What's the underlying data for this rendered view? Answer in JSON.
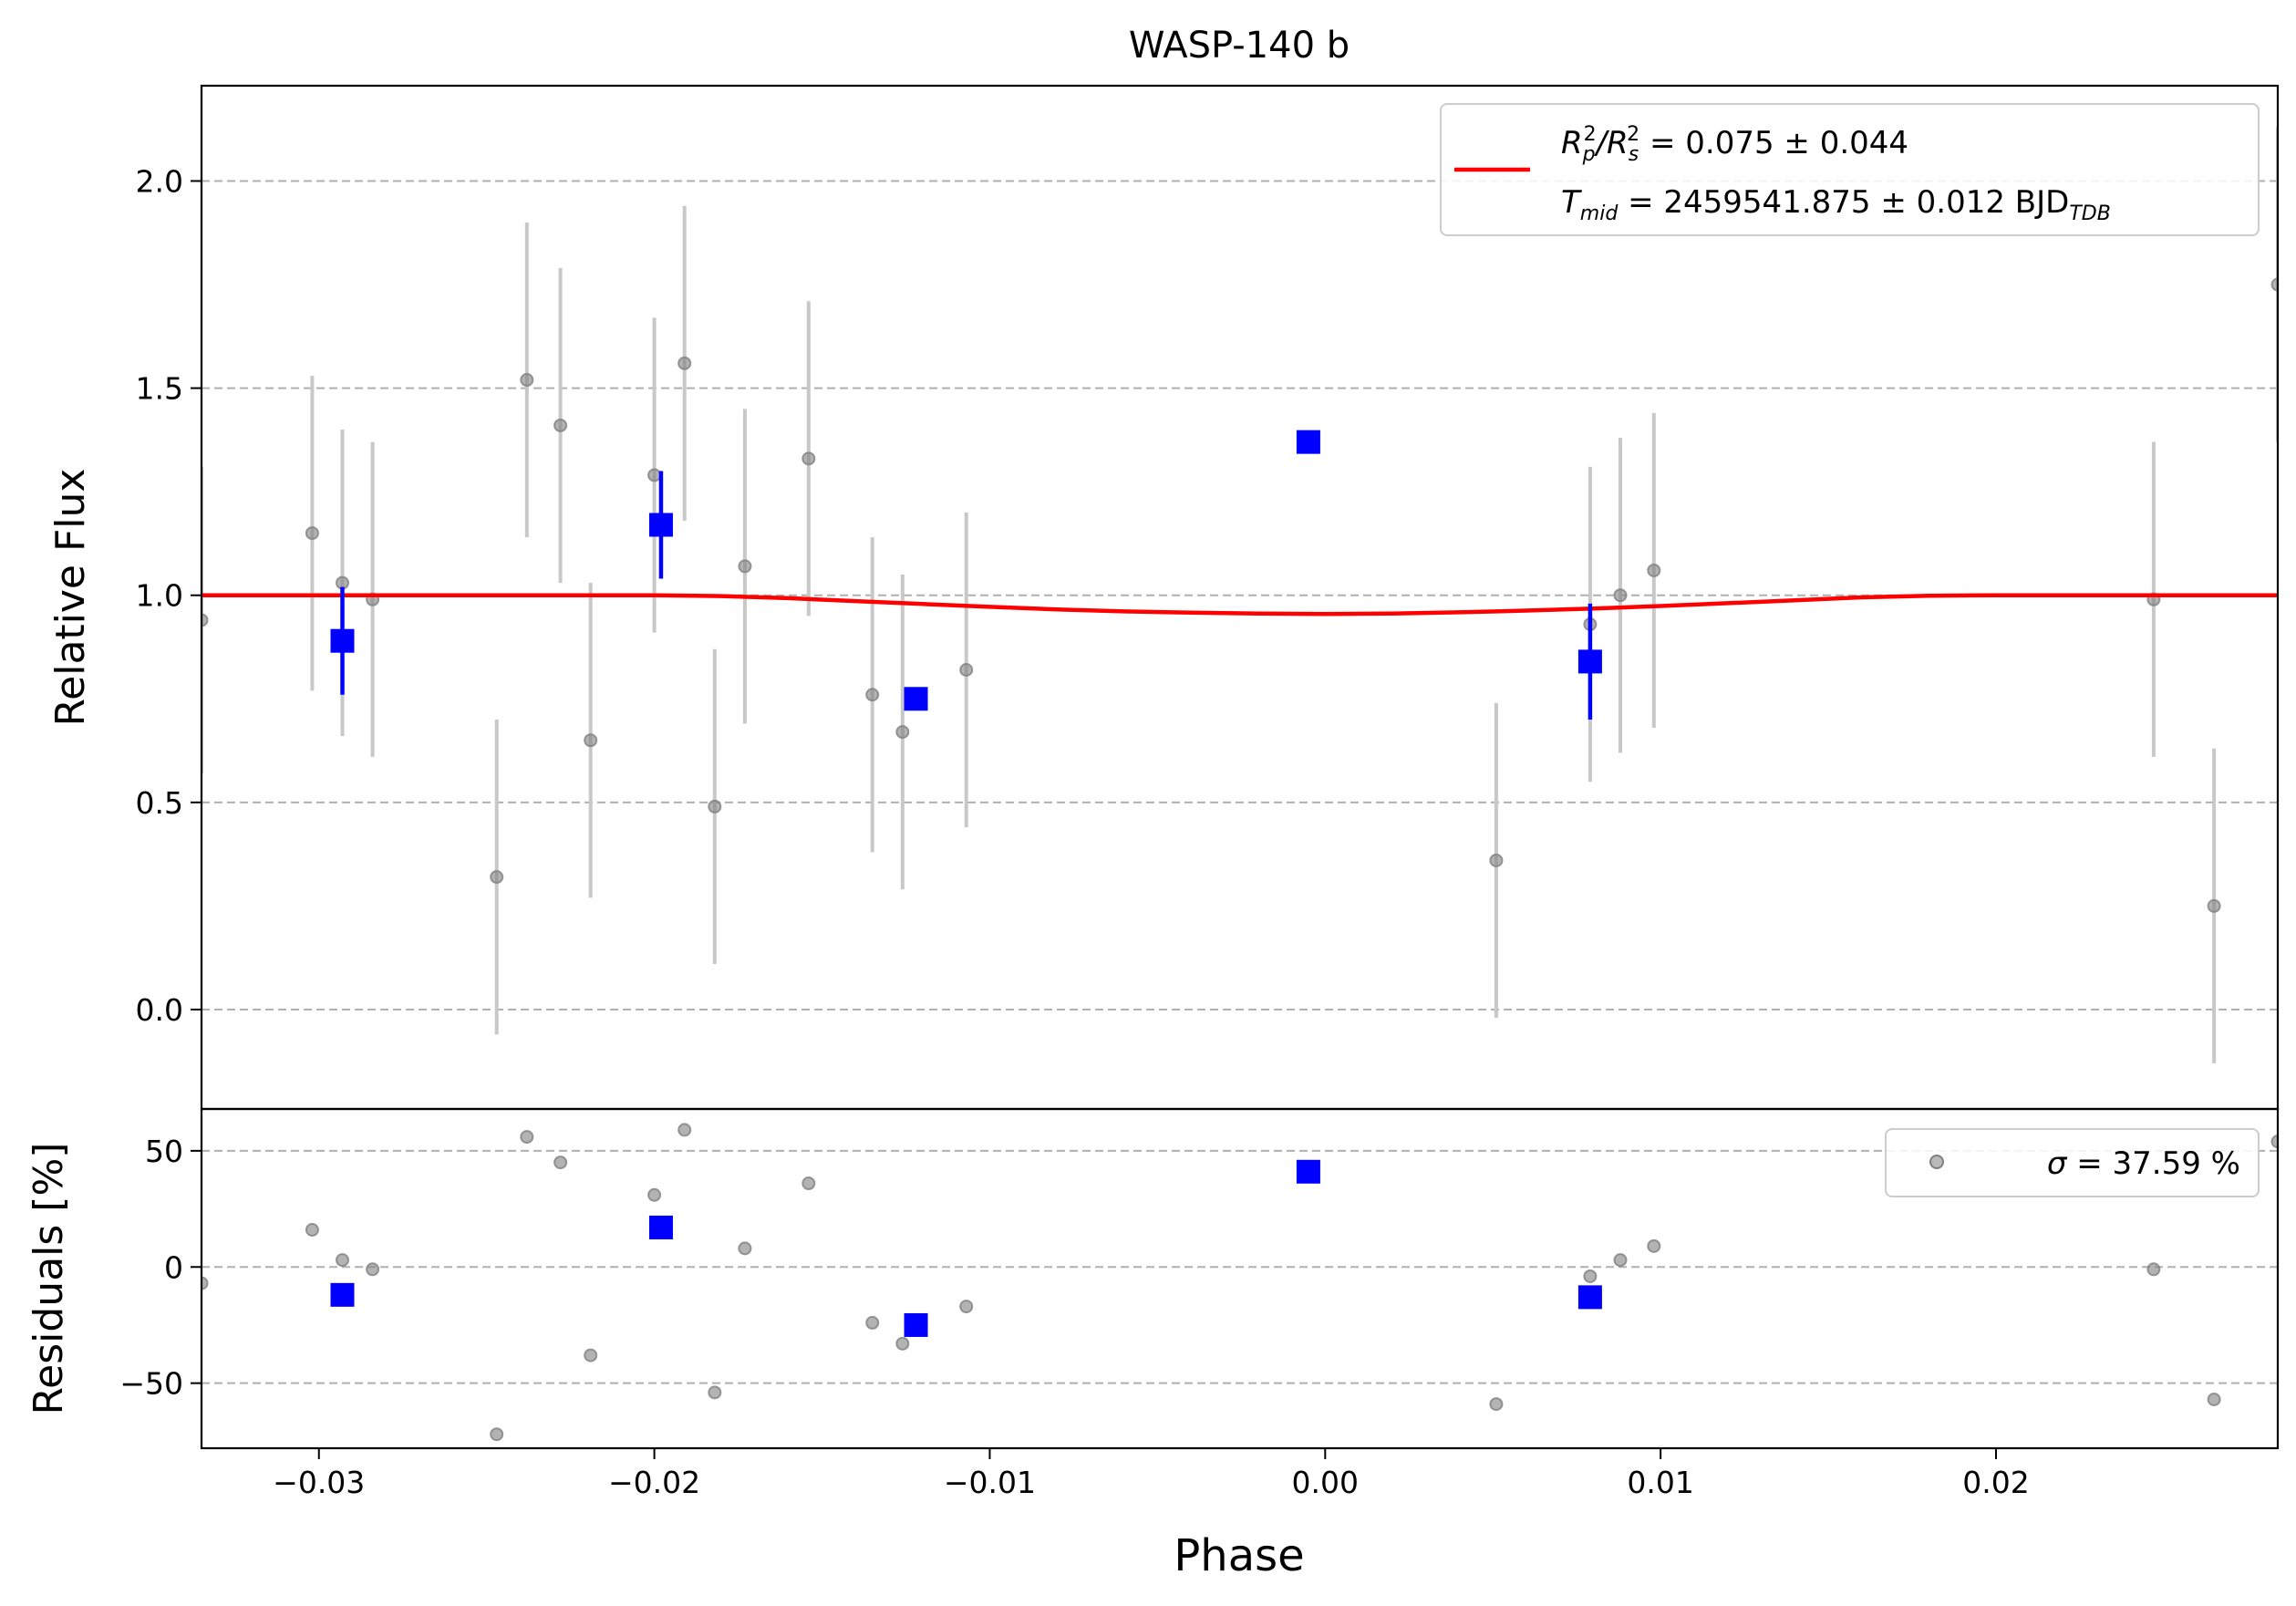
{
  "chart_data": [
    {
      "type": "scatter",
      "title": "WASP-140 b",
      "xlabel": "",
      "ylabel": "Relative Flux",
      "xlim": [
        -0.0335,
        0.0284
      ],
      "ylim": [
        -0.24,
        2.23
      ],
      "xticks": [
        -0.03,
        -0.02,
        -0.01,
        0.0,
        0.01,
        0.02
      ],
      "yticks": [
        0.0,
        0.5,
        1.0,
        1.5,
        2.0
      ],
      "ytick_labels": [
        "0.0",
        "0.5",
        "1.0",
        "1.5",
        "2.0"
      ],
      "grid": "y-dashed",
      "legend": {
        "placement": "top-right",
        "line1": {
          "label": "R",
          "sub1": "p",
          "sup1": "2",
          "sep": "/R",
          "sub2": "s",
          "sup2": "2",
          "value": " = 0.075 ± 0.044"
        },
        "line2": {
          "label": "T",
          "sub": "mid",
          "value": " = 2459541.875 ± 0.012 BJD",
          "unit_sub": "TDB"
        }
      },
      "series": [
        {
          "kind": "raw",
          "color": "#808080",
          "points": [
            {
              "x": -0.0335,
              "y": 0.94,
              "err": 0.37
            },
            {
              "x": -0.0302,
              "y": 1.15,
              "err": 0.38
            },
            {
              "x": -0.0293,
              "y": 1.03,
              "err": 0.37
            },
            {
              "x": -0.0284,
              "y": 0.99,
              "err": 0.38
            },
            {
              "x": -0.0247,
              "y": 0.32,
              "err": 0.38
            },
            {
              "x": -0.0238,
              "y": 1.52,
              "err": 0.38
            },
            {
              "x": -0.0228,
              "y": 1.41,
              "err": 0.38
            },
            {
              "x": -0.0219,
              "y": 0.65,
              "err": 0.38
            },
            {
              "x": -0.02,
              "y": 1.29,
              "err": 0.38
            },
            {
              "x": -0.0191,
              "y": 1.56,
              "err": 0.38
            },
            {
              "x": -0.0182,
              "y": 0.49,
              "err": 0.38
            },
            {
              "x": -0.0173,
              "y": 1.07,
              "err": 0.38
            },
            {
              "x": -0.0154,
              "y": 1.33,
              "err": 0.38
            },
            {
              "x": -0.0135,
              "y": 0.76,
              "err": 0.38
            },
            {
              "x": -0.0126,
              "y": 0.67,
              "err": 0.38
            },
            {
              "x": -0.0107,
              "y": 0.82,
              "err": 0.38
            },
            {
              "x": 0.0051,
              "y": 0.36,
              "err": 0.38
            },
            {
              "x": 0.0079,
              "y": 0.93,
              "err": 0.38
            },
            {
              "x": 0.0088,
              "y": 1.0,
              "err": 0.38
            },
            {
              "x": 0.0098,
              "y": 1.06,
              "err": 0.38
            },
            {
              "x": 0.0247,
              "y": 0.99,
              "err": 0.38
            },
            {
              "x": 0.0265,
              "y": 0.25,
              "err": 0.38
            },
            {
              "x": 0.0284,
              "y": 1.75,
              "err": 0.38
            }
          ]
        },
        {
          "kind": "binned",
          "color": "#0000ff",
          "points": [
            {
              "x": -0.0293,
              "y": 0.89,
              "err": 0.13
            },
            {
              "x": -0.0198,
              "y": 1.17,
              "err": 0.13
            },
            {
              "x": -0.0122,
              "y": 0.75,
              "err": 0.02
            },
            {
              "x": -0.0005,
              "y": 1.37,
              "err": 0.0
            },
            {
              "x": 0.0079,
              "y": 0.84,
              "err": 0.14
            }
          ]
        },
        {
          "kind": "model",
          "color": "#ff0000",
          "x": [
            -0.0335,
            -0.025,
            -0.02,
            -0.018,
            -0.016,
            -0.014,
            -0.012,
            -0.01,
            -0.008,
            -0.006,
            -0.004,
            -0.002,
            0.0,
            0.002,
            0.004,
            0.006,
            0.008,
            0.01,
            0.012,
            0.014,
            0.016,
            0.018,
            0.02,
            0.0284
          ],
          "y": [
            1.0,
            1.0,
            1.0,
            0.998,
            0.993,
            0.986,
            0.979,
            0.972,
            0.966,
            0.961,
            0.958,
            0.956,
            0.955,
            0.956,
            0.959,
            0.963,
            0.968,
            0.974,
            0.981,
            0.988,
            0.995,
            0.999,
            1.0,
            1.0
          ]
        }
      ]
    },
    {
      "type": "scatter",
      "title": "",
      "xlabel": "Phase",
      "ylabel": "Residuals [%]",
      "xlim": [
        -0.0335,
        0.0284
      ],
      "ylim": [
        -78,
        68
      ],
      "xticks": [
        -0.03,
        -0.02,
        -0.01,
        0.0,
        0.01,
        0.02
      ],
      "xtick_labels": [
        "−0.03",
        "−0.02",
        "−0.01",
        "0.00",
        "0.01",
        "0.02"
      ],
      "yticks": [
        -50,
        0,
        50
      ],
      "ytick_labels": [
        "−50",
        "0",
        "50"
      ],
      "grid": "y-dashed",
      "legend": {
        "placement": "top-right",
        "label": "σ",
        "value": " = 37.59 %"
      },
      "series": [
        {
          "kind": "raw",
          "color": "#808080",
          "points": [
            {
              "x": -0.0335,
              "y": -7
            },
            {
              "x": -0.0302,
              "y": 16
            },
            {
              "x": -0.0293,
              "y": 3
            },
            {
              "x": -0.0284,
              "y": -1
            },
            {
              "x": -0.0247,
              "y": -72
            },
            {
              "x": -0.0238,
              "y": 56
            },
            {
              "x": -0.0228,
              "y": 45
            },
            {
              "x": -0.0219,
              "y": -38
            },
            {
              "x": -0.02,
              "y": 31
            },
            {
              "x": -0.0191,
              "y": 59
            },
            {
              "x": -0.0182,
              "y": -54
            },
            {
              "x": -0.0173,
              "y": 8
            },
            {
              "x": -0.0154,
              "y": 36
            },
            {
              "x": -0.0135,
              "y": -24
            },
            {
              "x": -0.0126,
              "y": -33
            },
            {
              "x": -0.0107,
              "y": -17
            },
            {
              "x": 0.0051,
              "y": -59
            },
            {
              "x": 0.0079,
              "y": -4
            },
            {
              "x": 0.0088,
              "y": 3
            },
            {
              "x": 0.0098,
              "y": 9
            },
            {
              "x": 0.0247,
              "y": -1
            },
            {
              "x": 0.0265,
              "y": -57
            },
            {
              "x": 0.0284,
              "y": 54
            }
          ]
        },
        {
          "kind": "binned",
          "color": "#0000ff",
          "points": [
            {
              "x": -0.0293,
              "y": -12
            },
            {
              "x": -0.0198,
              "y": 17
            },
            {
              "x": -0.0122,
              "y": -25
            },
            {
              "x": -0.0005,
              "y": 41
            },
            {
              "x": 0.0079,
              "y": -13
            }
          ]
        }
      ]
    }
  ]
}
